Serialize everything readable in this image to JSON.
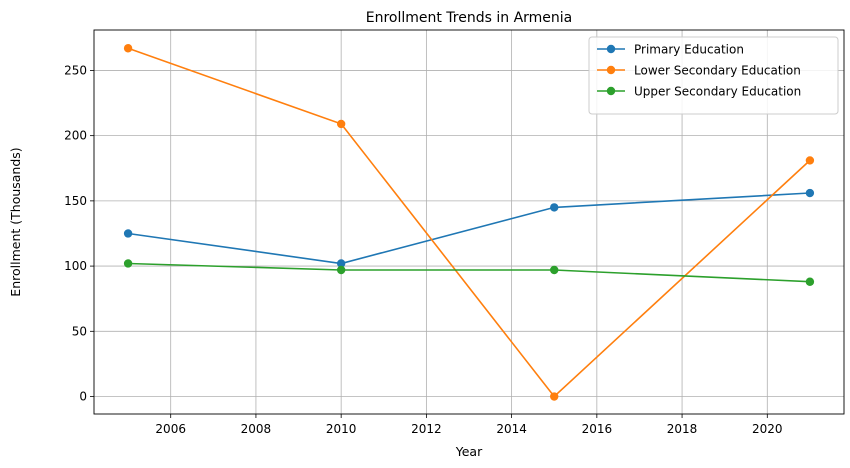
{
  "chart_data": {
    "type": "line",
    "title": "Enrollment Trends in Armenia",
    "xlabel": "Year",
    "ylabel": "Enrollment (Thousands)",
    "xlim": [
      2004.2,
      2021.8
    ],
    "ylim": [
      -13.4,
      281
    ],
    "xticks": [
      2006,
      2008,
      2010,
      2012,
      2014,
      2016,
      2018,
      2020
    ],
    "yticks": [
      0,
      50,
      100,
      150,
      200,
      250
    ],
    "grid": true,
    "legend_position": "top-right",
    "x": [
      2005,
      2010,
      2015,
      2021
    ],
    "series": [
      {
        "name": "Primary Education",
        "color": "#1f77b4",
        "values": [
          125,
          102,
          145,
          156
        ]
      },
      {
        "name": "Lower Secondary Education",
        "color": "#ff7f0e",
        "values": [
          267,
          209,
          0,
          181
        ]
      },
      {
        "name": "Upper Secondary Education",
        "color": "#2ca02c",
        "values": [
          102,
          97,
          97,
          88
        ]
      }
    ]
  }
}
